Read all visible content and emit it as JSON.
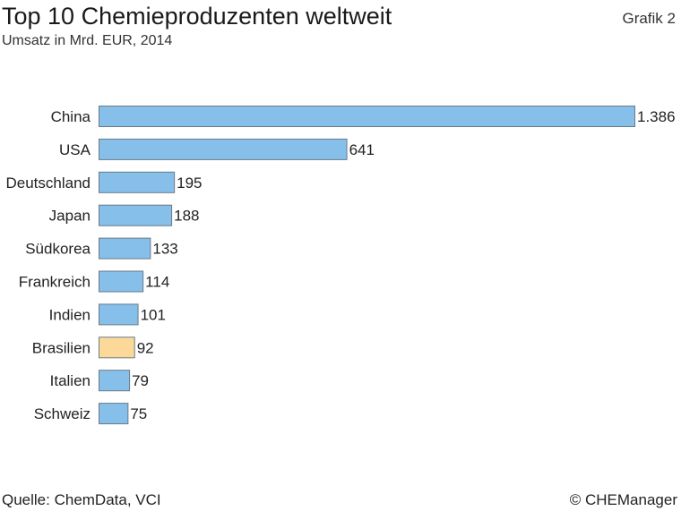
{
  "header": {
    "title": "Top 10 Chemieproduzenten weltweit",
    "subtitle": "Umsatz in Mrd. EUR, 2014",
    "figure_label": "Grafik 2"
  },
  "footer": {
    "source": "Quelle: ChemData, VCI",
    "copyright": "© CHEManager"
  },
  "colors": {
    "bar_default": "#85bfea",
    "bar_highlight": "#fdd999",
    "bar_stroke": "#6a7a88"
  },
  "chart_data": {
    "type": "bar",
    "orientation": "horizontal",
    "title": "Top 10 Chemieproduzenten weltweit",
    "subtitle": "Umsatz in Mrd. EUR, 2014",
    "xlabel": "",
    "ylabel": "",
    "xlim": [
      0,
      1386
    ],
    "grid": false,
    "categories": [
      "China",
      "USA",
      "Deutschland",
      "Japan",
      "Südkorea",
      "Frankreich",
      "Indien",
      "Brasilien",
      "Italien",
      "Schweiz"
    ],
    "values": [
      1386,
      641,
      195,
      188,
      133,
      114,
      101,
      92,
      79,
      75
    ],
    "value_labels": [
      "1.386",
      "641",
      "195",
      "188",
      "133",
      "114",
      "101",
      "92",
      "79",
      "75"
    ],
    "highlight": "Brasilien"
  }
}
